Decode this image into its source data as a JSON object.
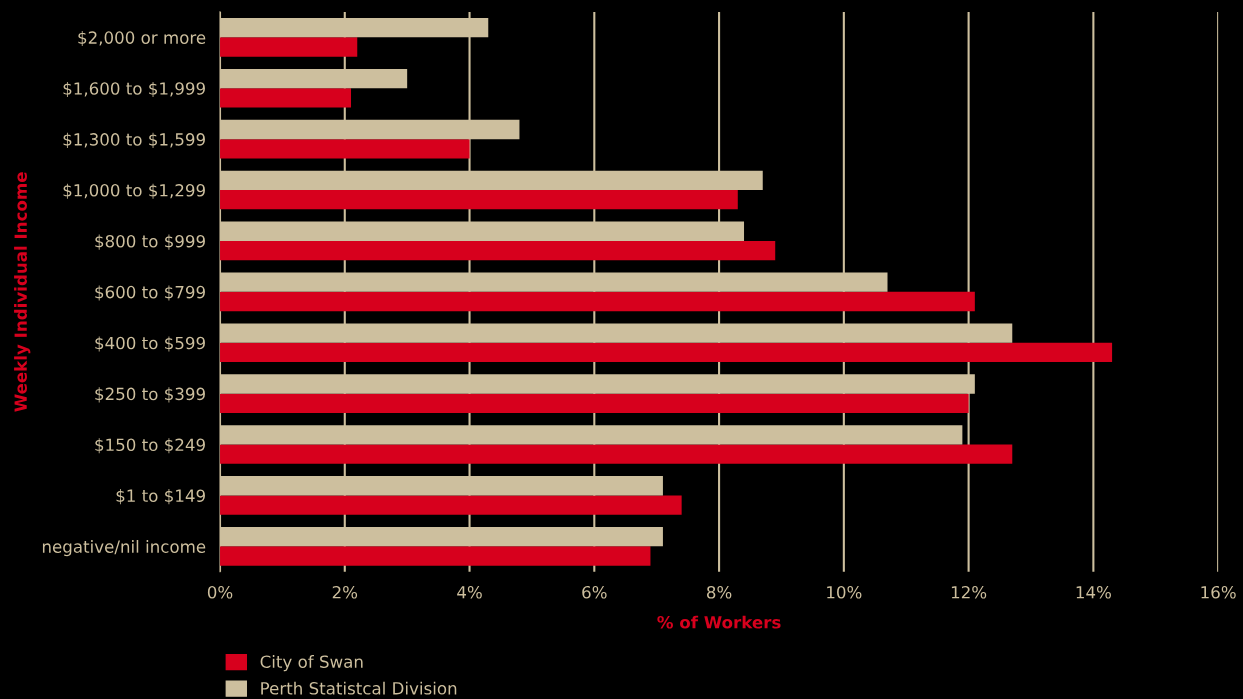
{
  "chart_data": {
    "type": "bar",
    "orientation": "horizontal",
    "xlabel": "% of Workers",
    "ylabel": "Weekly Individual Income",
    "categories": [
      "$2,000 or more",
      "$1,600 to $1,999",
      "$1,300 to $1,599",
      "$1,000 to $1,299",
      "$800 to $999",
      "$600 to $799",
      "$400 to $599",
      "$250 to $399",
      "$150 to $249",
      "$1 to $149",
      "negative/nil income"
    ],
    "series": [
      {
        "name": "City of Swan",
        "color": "#d7001d",
        "values": [
          2.2,
          2.1,
          4.0,
          8.3,
          8.9,
          12.1,
          14.3,
          12.0,
          12.7,
          7.4,
          6.9
        ]
      },
      {
        "name": "Perth Statistcal Division",
        "color": "#cdbf9e",
        "values": [
          4.3,
          3.0,
          4.8,
          8.7,
          8.4,
          10.7,
          12.7,
          12.1,
          11.9,
          7.1,
          7.1
        ]
      }
    ],
    "xlim": [
      0,
      16
    ],
    "xticks": [
      {
        "value": 0,
        "label": "0%"
      },
      {
        "value": 2,
        "label": "2%"
      },
      {
        "value": 4,
        "label": "4%"
      },
      {
        "value": 6,
        "label": "6%"
      },
      {
        "value": 8,
        "label": "8%"
      },
      {
        "value": 10,
        "label": "10%"
      },
      {
        "value": 12,
        "label": "12%"
      },
      {
        "value": 14,
        "label": "14%"
      },
      {
        "value": 16,
        "label": "16%"
      }
    ],
    "grid": "x",
    "legend": "bottom left"
  }
}
